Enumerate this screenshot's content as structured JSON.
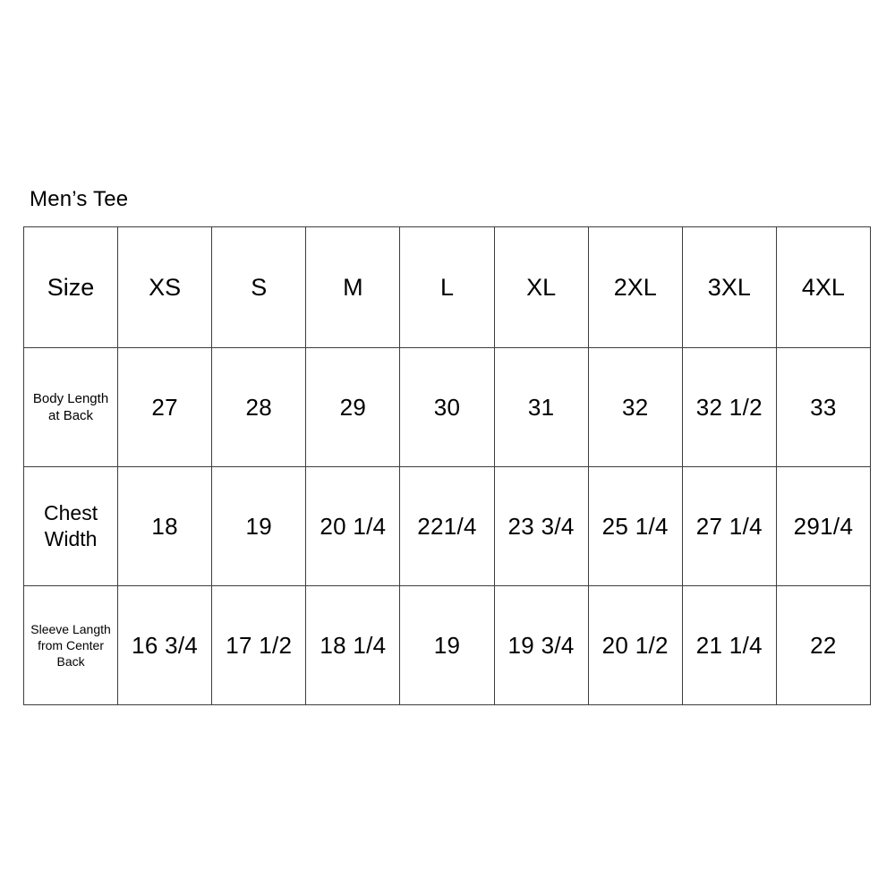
{
  "title": "Men’s Tee",
  "chart_data": {
    "type": "table",
    "title": "Men’s Tee",
    "columns": [
      "Size",
      "XS",
      "S",
      "M",
      "L",
      "XL",
      "2XL",
      "3XL",
      "4XL"
    ],
    "rows": [
      [
        "Body Length at Back",
        "27",
        "28",
        "29",
        "30",
        "31",
        "32",
        "32 1/2",
        "33"
      ],
      [
        "Chest Width",
        "18",
        "19",
        "20 1/4",
        "221/4",
        "23 3/4",
        "25 1/4",
        "27 1/4",
        "291/4"
      ],
      [
        "Sleeve Langth from Center Back",
        "16 3/4",
        "17 1/2",
        "18 1/4",
        "19",
        "19 3/4",
        "20 1/2",
        "21 1/4",
        "22"
      ]
    ],
    "layout": {
      "grid": true,
      "header_position": "top",
      "label_column_position": "left"
    }
  }
}
